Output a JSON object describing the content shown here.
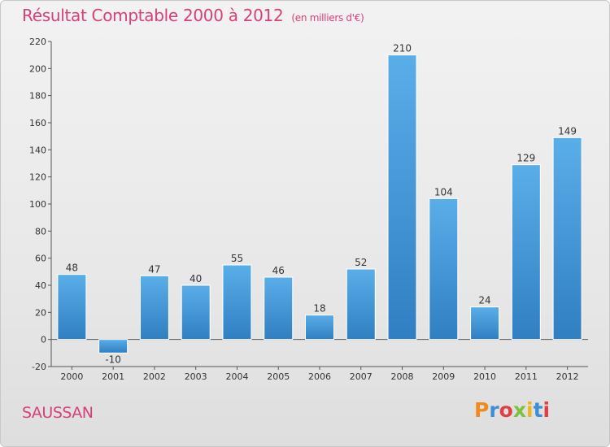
{
  "header": {
    "title": "Résultat Comptable 2000 à 2012",
    "subtitle": "(en milliers d'€)"
  },
  "footer": {
    "place": "SAUSSAN",
    "logo_text": "Proxiti"
  },
  "colors": {
    "title": "#d8407a",
    "bar_top": "#5aaee8",
    "bar_bottom": "#2f7fc2",
    "logo": [
      "#f08a1c",
      "#3b8fd6",
      "#e04040",
      "#7cc23a",
      "#f0b41c",
      "#3b8fd6",
      "#e04040"
    ]
  },
  "chart_data": {
    "type": "bar",
    "title": "Résultat Comptable 2000 à 2012",
    "subtitle": "(en milliers d'€)",
    "categories": [
      "2000",
      "2001",
      "2002",
      "2003",
      "2004",
      "2005",
      "2006",
      "2007",
      "2008",
      "2009",
      "2010",
      "2011",
      "2012"
    ],
    "values": [
      48,
      -10,
      47,
      40,
      55,
      46,
      18,
      52,
      210,
      104,
      24,
      129,
      149
    ],
    "ylim": [
      -20,
      220
    ],
    "yticks": [
      -20,
      0,
      20,
      40,
      60,
      80,
      100,
      120,
      140,
      160,
      180,
      200,
      220
    ],
    "grid": false,
    "xlabel": "",
    "ylabel": ""
  }
}
